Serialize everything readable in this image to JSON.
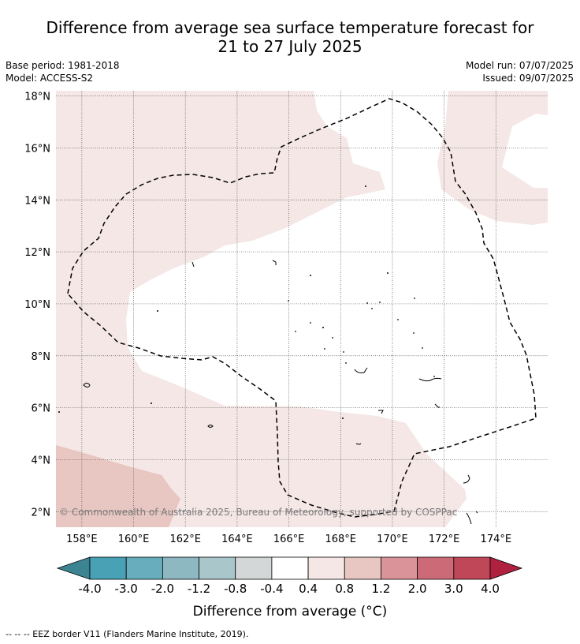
{
  "title_line1": "Difference from average sea surface temperature forecast for",
  "title_line2": "21 to 27 July 2025",
  "base_period": "Base period: 1981-2018",
  "model": "Model: ACCESS-S2",
  "model_run": "Model run: 07/07/2025",
  "issued": "Issued: 09/07/2025",
  "copyright": "© Commonwealth of Australia 2025, Bureau of Meteorology, supported by COSPPac",
  "footnote": "-- -- -- EEZ border V11 (Flanders Marine Institute, 2019).",
  "map": {
    "lon_range": [
      157,
      176
    ],
    "lat_range": [
      1.4,
      18.2
    ],
    "lon_ticks": [
      158,
      160,
      162,
      164,
      166,
      168,
      170,
      172,
      174
    ],
    "lon_tick_labels": [
      "158°E",
      "160°E",
      "162°E",
      "164°E",
      "166°E",
      "168°E",
      "170°E",
      "172°E",
      "174°E"
    ],
    "lat_ticks": [
      18,
      16,
      14,
      12,
      10,
      8,
      6,
      4,
      2
    ],
    "lat_tick_labels": [
      "18°N",
      "16°N",
      "14°N",
      "12°N",
      "10°N",
      "8°N",
      "6°N",
      "4°N",
      "2°N"
    ],
    "grid": true
  },
  "colorbar": {
    "title": "Difference from average (°C)",
    "tick_labels": [
      "-4.0",
      "-3.0",
      "-2.0",
      "-1.2",
      "-0.8",
      "-0.4",
      "0.4",
      "0.8",
      "1.2",
      "2.0",
      "3.0",
      "4.0"
    ],
    "colors": [
      "#3d8493",
      "#48a1b5",
      "#68adbd",
      "#8db8c2",
      "#a9c6ca",
      "#d3d7d7",
      "#ffffff",
      "#f4e7e6",
      "#e8c6c2",
      "#da9399",
      "#cd6a78",
      "#c04758",
      "#b0213f"
    ]
  },
  "palette": {
    "light_anom": "#f4e7e6",
    "mid_anom": "#e8c6c2"
  }
}
